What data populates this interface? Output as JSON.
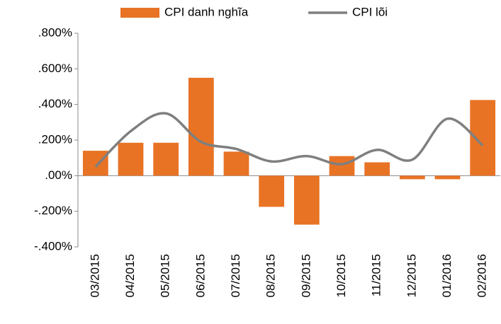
{
  "chart_data": {
    "type": "bar",
    "categories": [
      "03/2015",
      "04/2015",
      "05/2015",
      "06/2015",
      "07/2015",
      "08/2015",
      "09/2015",
      "10/2015",
      "11/2015",
      "12/2015",
      "01/2016",
      "02/2016"
    ],
    "series": [
      {
        "name": "CPI danh nghĩa",
        "type": "bar",
        "color": "#e87325",
        "values": [
          0.14,
          0.185,
          0.185,
          0.55,
          0.135,
          -0.175,
          -0.275,
          0.11,
          0.075,
          -0.02,
          -0.02,
          0.425
        ]
      },
      {
        "name": "CPI lõi",
        "type": "line",
        "color": "#7f7f7f",
        "values": [
          0.05,
          0.25,
          0.35,
          0.19,
          0.15,
          0.08,
          0.11,
          0.065,
          0.145,
          0.09,
          0.32,
          0.17
        ]
      }
    ],
    "ylim": [
      -0.4,
      0.8
    ],
    "yticks": [
      {
        "value": -0.4,
        "label": "-.400%"
      },
      {
        "value": -0.2,
        "label": "-.200%"
      },
      {
        "value": 0,
        "label": ".00%"
      },
      {
        "value": 0.2,
        "label": ".200%"
      },
      {
        "value": 0.4,
        "label": ".400%"
      },
      {
        "value": 0.6,
        "label": ".600%"
      },
      {
        "value": 0.8,
        "label": ".800%"
      }
    ],
    "grid": false,
    "legend": "top"
  }
}
